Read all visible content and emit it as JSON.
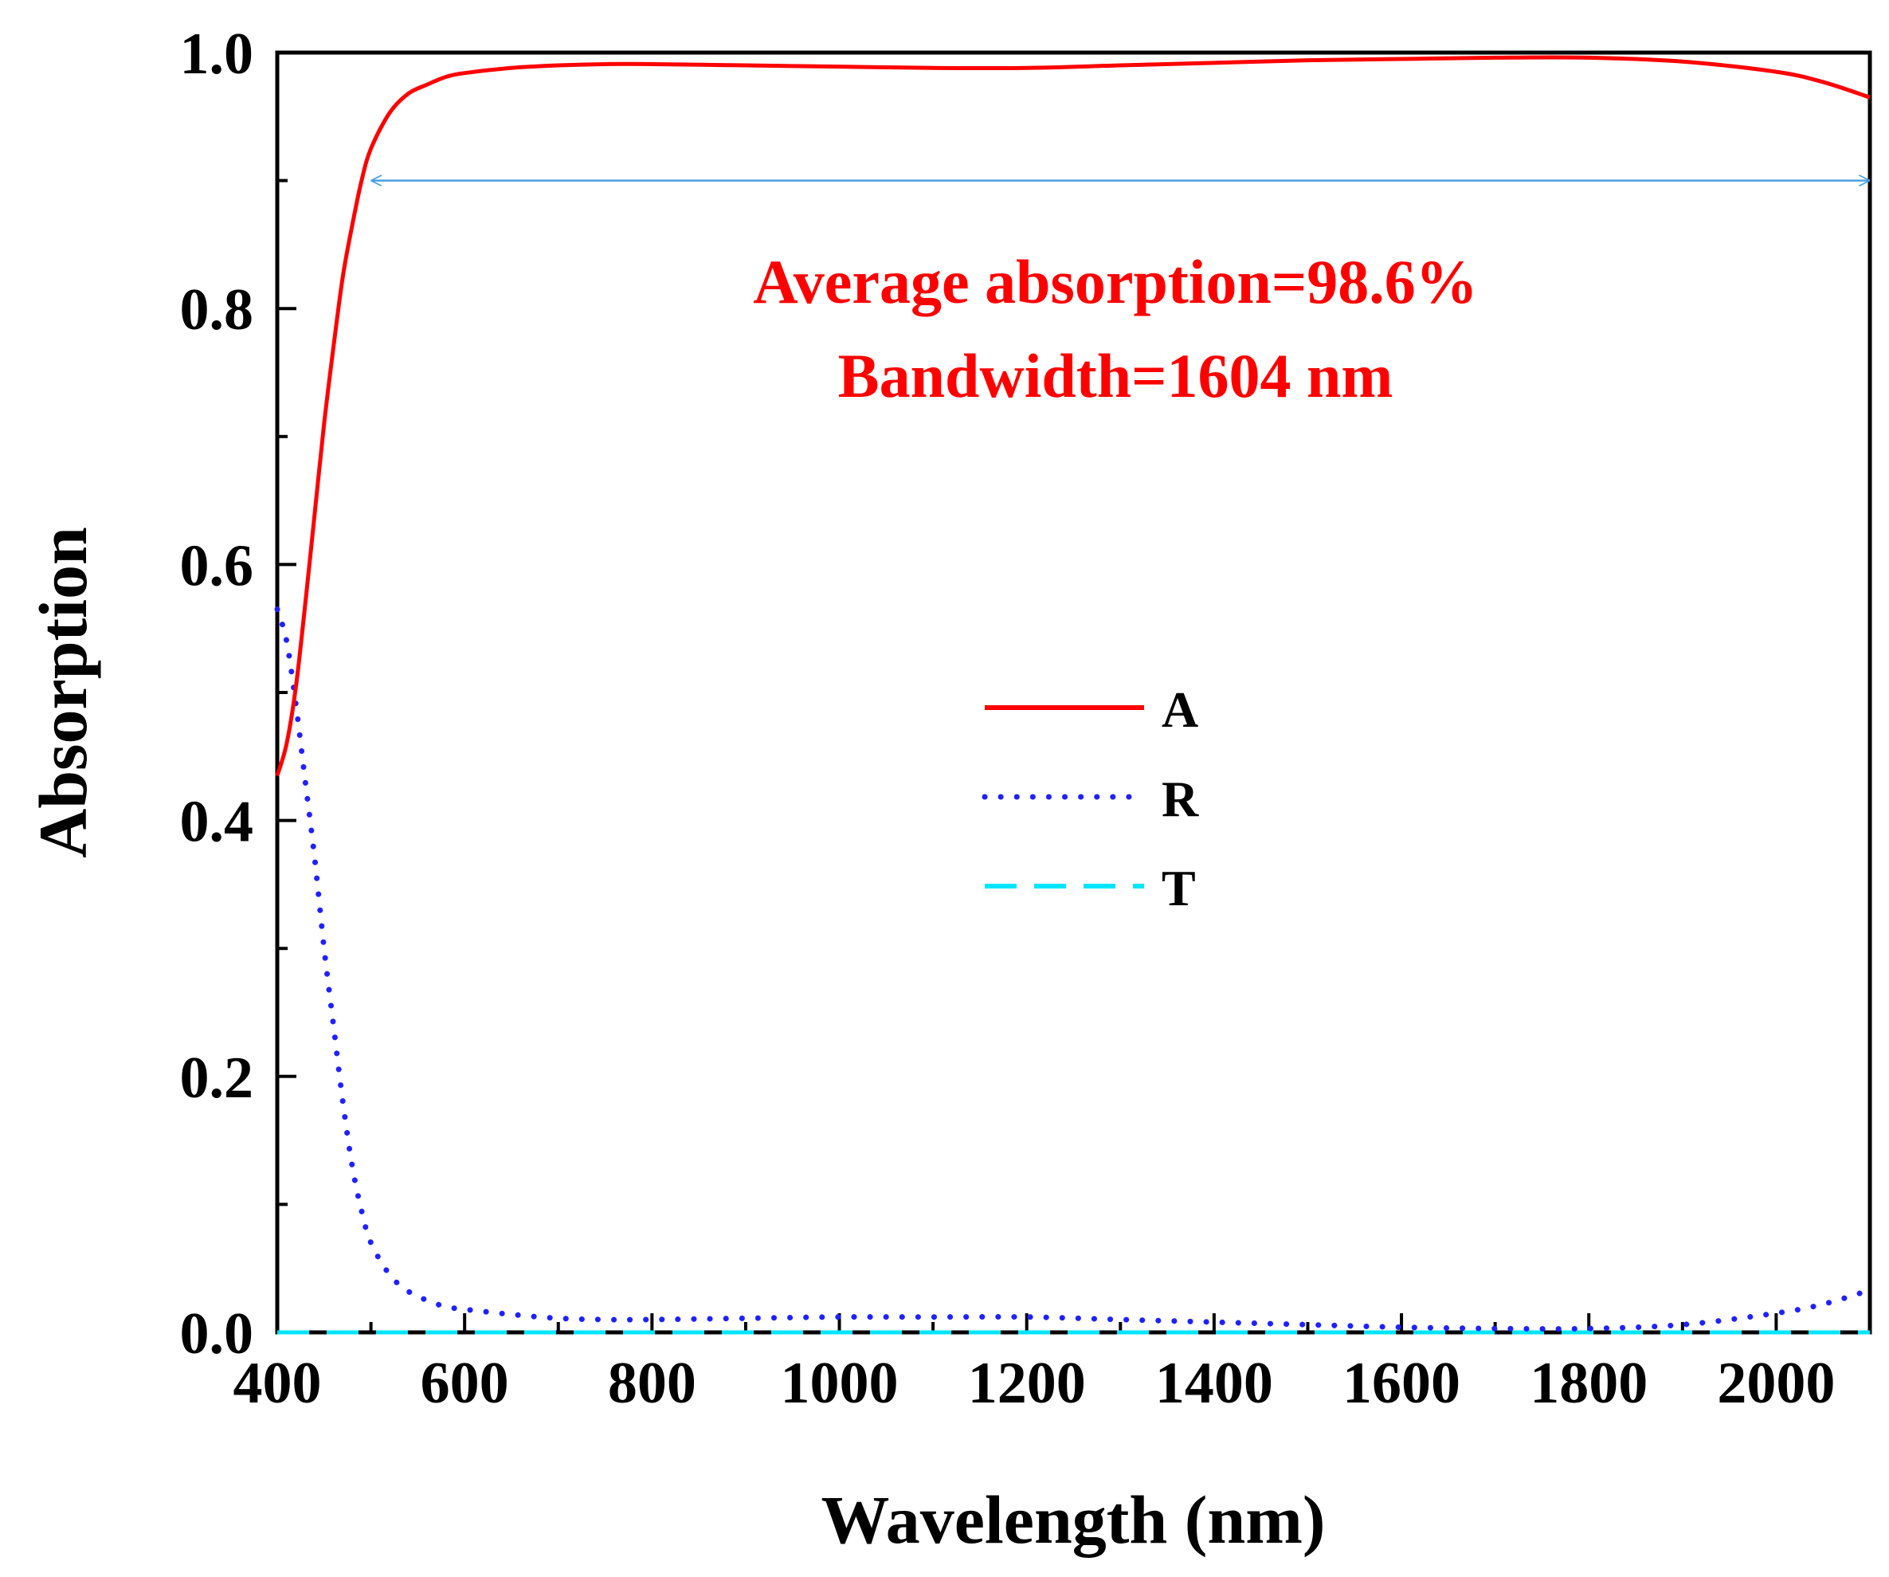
{
  "chart_data": {
    "type": "line",
    "xlabel": "Wavelength (nm)",
    "ylabel": "Absorption",
    "xlim": [
      400,
      2100
    ],
    "ylim": [
      0.0,
      1.0
    ],
    "xticks": [
      400,
      600,
      800,
      1000,
      1200,
      1400,
      1600,
      1800,
      2000
    ],
    "xtick_labels": [
      "400",
      "600",
      "800",
      "1000",
      "1200",
      "1400",
      "1600",
      "1800",
      "2000"
    ],
    "yticks": [
      0.0,
      0.2,
      0.4,
      0.6,
      0.8,
      1.0
    ],
    "ytick_labels": [
      "0.0",
      "0.2",
      "0.4",
      "0.6",
      "0.8",
      "1.0"
    ],
    "grid": false,
    "legend_position": "center",
    "annotations": [
      {
        "text": "Average absorption=98.6%",
        "color": "#ff0000"
      },
      {
        "text": "Bandwidth=1604 nm",
        "color": "#ff0000"
      }
    ],
    "bandwidth_arrow": {
      "x_start": 500,
      "x_end": 2100,
      "y": 0.9,
      "color": "#4a9fe0"
    },
    "series": [
      {
        "name": "A",
        "color": "#ff0000",
        "style": "solid",
        "x": [
          400,
          410,
          420,
          430,
          440,
          450,
          460,
          470,
          480,
          490,
          500,
          520,
          540,
          560,
          580,
          600,
          650,
          700,
          750,
          800,
          900,
          1000,
          1100,
          1200,
          1300,
          1400,
          1500,
          1600,
          1700,
          1800,
          1900,
          2000,
          2050,
          2100
        ],
        "y": [
          0.435,
          0.46,
          0.505,
          0.57,
          0.64,
          0.71,
          0.77,
          0.825,
          0.865,
          0.9,
          0.925,
          0.953,
          0.968,
          0.975,
          0.981,
          0.984,
          0.988,
          0.99,
          0.991,
          0.991,
          0.99,
          0.989,
          0.988,
          0.988,
          0.99,
          0.992,
          0.994,
          0.995,
          0.996,
          0.996,
          0.993,
          0.985,
          0.977,
          0.965
        ]
      },
      {
        "name": "R",
        "color": "#2020ff",
        "style": "dotted",
        "x": [
          400,
          410,
          420,
          430,
          440,
          450,
          460,
          470,
          480,
          490,
          500,
          520,
          540,
          560,
          580,
          600,
          650,
          700,
          750,
          800,
          900,
          1000,
          1100,
          1200,
          1300,
          1400,
          1500,
          1600,
          1700,
          1800,
          1900,
          2000,
          2050,
          2100
        ],
        "y": [
          0.565,
          0.54,
          0.49,
          0.43,
          0.37,
          0.3,
          0.24,
          0.18,
          0.13,
          0.095,
          0.07,
          0.045,
          0.032,
          0.025,
          0.02,
          0.018,
          0.014,
          0.011,
          0.01,
          0.01,
          0.011,
          0.012,
          0.012,
          0.012,
          0.01,
          0.008,
          0.006,
          0.004,
          0.003,
          0.003,
          0.006,
          0.015,
          0.022,
          0.033
        ]
      },
      {
        "name": "T",
        "color": "#00e5ff",
        "style": "dashed",
        "x": [
          400,
          2100
        ],
        "y": [
          0.0,
          0.0
        ]
      }
    ]
  }
}
